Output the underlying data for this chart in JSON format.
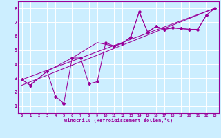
{
  "xlabel": "Windchill (Refroidissement éolien,°C)",
  "background_color": "#cceeff",
  "grid_color": "#ffffff",
  "line_color": "#990099",
  "xlim": [
    -0.5,
    23.5
  ],
  "ylim": [
    0.5,
    8.5
  ],
  "xticks": [
    0,
    1,
    2,
    3,
    4,
    5,
    6,
    7,
    8,
    9,
    10,
    11,
    12,
    13,
    14,
    15,
    16,
    17,
    18,
    19,
    20,
    21,
    22,
    23
  ],
  "yticks": [
    1,
    2,
    3,
    4,
    5,
    6,
    7,
    8
  ],
  "series1_x": [
    0,
    1,
    3,
    4,
    5,
    6,
    7,
    8,
    9,
    10,
    11,
    12,
    13,
    14,
    15,
    16,
    17,
    18,
    19,
    20,
    21,
    22,
    23
  ],
  "series1_y": [
    2.9,
    2.5,
    3.5,
    1.7,
    1.2,
    4.45,
    4.45,
    2.6,
    2.75,
    5.55,
    5.3,
    5.5,
    5.95,
    7.75,
    6.3,
    6.7,
    6.5,
    6.6,
    6.55,
    6.5,
    6.5,
    7.5,
    8.0
  ],
  "series2_x": [
    0,
    1,
    3,
    6,
    9,
    11,
    12,
    13,
    14,
    15,
    16,
    17,
    18,
    19,
    20,
    21,
    22,
    23
  ],
  "series2_y": [
    2.9,
    2.5,
    3.5,
    4.45,
    5.55,
    5.3,
    5.5,
    5.95,
    7.75,
    6.3,
    6.7,
    6.5,
    6.6,
    6.55,
    6.5,
    6.5,
    7.5,
    8.0
  ],
  "line3_x": [
    0,
    23
  ],
  "line3_y": [
    2.9,
    8.0
  ],
  "line4_x": [
    0,
    23
  ],
  "line4_y": [
    2.5,
    8.0
  ]
}
